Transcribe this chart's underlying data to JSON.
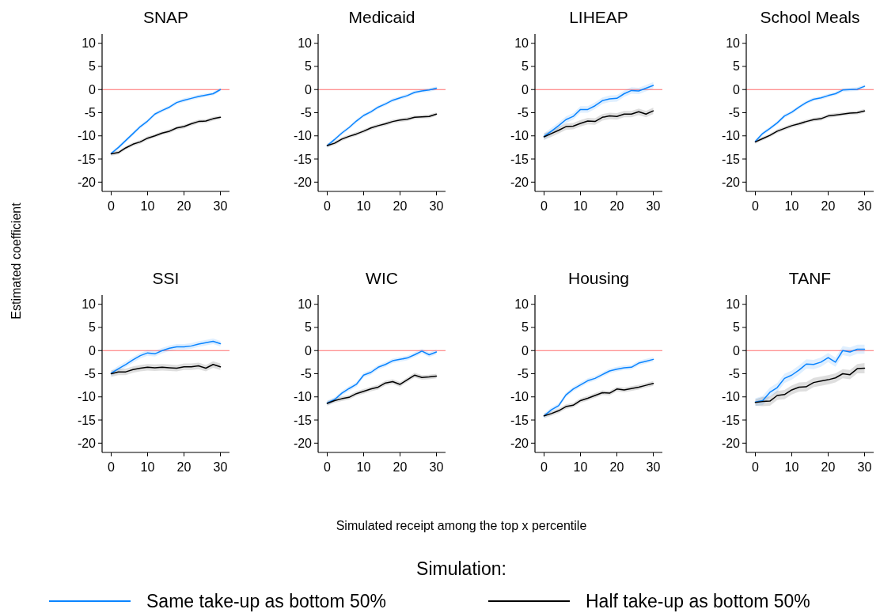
{
  "chart_data": [
    {
      "type": "line",
      "title": "SNAP",
      "ylabel": "Estimated coefficient",
      "legend_title": "Simulation:",
      "legend": "bottom",
      "x": [
        0,
        2,
        4,
        6,
        8,
        10,
        12,
        14,
        16,
        18,
        20,
        22,
        24,
        26,
        28,
        30
      ],
      "xlim": [
        -2.5,
        32.5
      ],
      "xticks": [
        0,
        10,
        20,
        30
      ],
      "ylim": [
        -22,
        12
      ],
      "yticks": [
        -20,
        -15,
        -10,
        -5,
        0,
        5,
        10
      ],
      "ref_lines": [
        {
          "axis": "y",
          "value": 0,
          "color": "#ff6b6b"
        }
      ],
      "series": [
        {
          "name": "Same take-up as bottom 50%",
          "color": "#0a84ff",
          "values": [
            -13.8,
            -12.5,
            -11,
            -9.5,
            -8,
            -6.8,
            -5.3,
            -4.5,
            -3.8,
            -2.8,
            -2.3,
            -1.9,
            -1.5,
            -1.2,
            -0.9,
            0
          ],
          "lower": [
            -14.2,
            -12.9,
            -11.4,
            -9.9,
            -8.4,
            -7.2,
            -5.7,
            -4.9,
            -4.2,
            -3.2,
            -2.7,
            -2.3,
            -1.9,
            -1.6,
            -1.3,
            -0.4
          ],
          "upper": [
            -13.4,
            -12.1,
            -10.6,
            -9.1,
            -7.6,
            -6.4,
            -4.9,
            -4.1,
            -3.4,
            -2.4,
            -1.9,
            -1.5,
            -1.1,
            -0.8,
            -0.5,
            0.4
          ]
        },
        {
          "name": "Half take-up as bottom 50%",
          "color": "#000000",
          "values": [
            -13.9,
            -13.6,
            -12.6,
            -11.8,
            -11.3,
            -10.5,
            -10,
            -9.4,
            -9,
            -8.3,
            -8,
            -7.4,
            -6.9,
            -6.8,
            -6.3,
            -6
          ],
          "lower": [
            -14.3,
            -14,
            -13,
            -12.2,
            -11.7,
            -10.9,
            -10.4,
            -9.8,
            -9.4,
            -8.7,
            -8.4,
            -7.8,
            -7.3,
            -7.2,
            -6.7,
            -6.4
          ],
          "upper": [
            -13.5,
            -13.2,
            -12.2,
            -11.4,
            -10.9,
            -10.1,
            -9.6,
            -9,
            -8.6,
            -7.9,
            -7.6,
            -7,
            -6.5,
            -6.4,
            -5.9,
            -5.6
          ]
        }
      ]
    },
    {
      "type": "line",
      "title": "Medicaid",
      "x": [
        0,
        2,
        4,
        6,
        8,
        10,
        12,
        14,
        16,
        18,
        20,
        22,
        24,
        26,
        28,
        30
      ],
      "xlim": [
        -2.5,
        32.5
      ],
      "xticks": [
        0,
        10,
        20,
        30
      ],
      "ylim": [
        -22,
        12
      ],
      "yticks": [
        -20,
        -15,
        -10,
        -5,
        0,
        5,
        10
      ],
      "ref_lines": [
        {
          "axis": "y",
          "value": 0,
          "color": "#ff6b6b"
        }
      ],
      "series": [
        {
          "color": "#0a84ff",
          "values": [
            -12.1,
            -10.8,
            -9.4,
            -8.2,
            -6.8,
            -5.6,
            -4.8,
            -3.8,
            -3.1,
            -2.3,
            -1.8,
            -1.3,
            -0.6,
            -0.3,
            -0.1,
            0.3
          ],
          "lower": [
            -12.5,
            -11.2,
            -9.8,
            -8.6,
            -7.2,
            -6,
            -5.2,
            -4.2,
            -3.5,
            -2.7,
            -2.2,
            -1.7,
            -1,
            -0.7,
            -0.5,
            -0.1
          ],
          "upper": [
            -11.7,
            -10.4,
            -9,
            -7.8,
            -6.4,
            -5.2,
            -4.4,
            -3.4,
            -2.7,
            -1.9,
            -1.4,
            -0.9,
            -0.2,
            0.1,
            0.3,
            0.7
          ]
        },
        {
          "color": "#000000",
          "values": [
            -12.1,
            -11.6,
            -10.7,
            -10.1,
            -9.6,
            -9,
            -8.3,
            -7.8,
            -7.4,
            -6.9,
            -6.6,
            -6.4,
            -6,
            -5.9,
            -5.8,
            -5.3
          ],
          "lower": [
            -12.5,
            -12,
            -11.1,
            -10.5,
            -10,
            -9.4,
            -8.7,
            -8.2,
            -7.8,
            -7.3,
            -7,
            -6.8,
            -6.4,
            -6.3,
            -6.2,
            -5.7
          ],
          "upper": [
            -11.7,
            -11.2,
            -10.3,
            -9.7,
            -9.2,
            -8.6,
            -7.9,
            -7.4,
            -7,
            -6.5,
            -6.2,
            -6,
            -5.6,
            -5.5,
            -5.4,
            -4.9
          ]
        }
      ]
    },
    {
      "type": "line",
      "title": "LIHEAP",
      "x": [
        0,
        2,
        4,
        6,
        8,
        10,
        12,
        14,
        16,
        18,
        20,
        22,
        24,
        26,
        28,
        30
      ],
      "xlim": [
        -2.5,
        32.5
      ],
      "xticks": [
        0,
        10,
        20,
        30
      ],
      "ylim": [
        -22,
        12
      ],
      "yticks": [
        -20,
        -15,
        -10,
        -5,
        0,
        5,
        10
      ],
      "ref_lines": [
        {
          "axis": "y",
          "value": 0,
          "color": "#ff6b6b"
        }
      ],
      "series": [
        {
          "color": "#0a84ff",
          "values": [
            -10.1,
            -9,
            -7.8,
            -6.5,
            -5.8,
            -4.3,
            -4.3,
            -3.5,
            -2.4,
            -2,
            -1.9,
            -0.9,
            -0.2,
            -0.3,
            0.3,
            0.9
          ],
          "lower": [
            -10.8,
            -9.7,
            -8.5,
            -7.2,
            -6.5,
            -5,
            -5,
            -4.2,
            -3.1,
            -2.7,
            -2.6,
            -1.6,
            -0.9,
            -1,
            -0.4,
            0.2
          ],
          "upper": [
            -9.4,
            -8.3,
            -7.1,
            -5.8,
            -5.1,
            -3.6,
            -3.6,
            -2.8,
            -1.7,
            -1.3,
            -1.2,
            -0.2,
            0.5,
            0.4,
            1,
            1.6
          ]
        },
        {
          "color": "#000000",
          "values": [
            -10.2,
            -9.5,
            -8.8,
            -8,
            -7.9,
            -7.3,
            -6.8,
            -6.9,
            -6,
            -5.7,
            -5.8,
            -5.3,
            -5.3,
            -4.8,
            -5.3,
            -4.6
          ],
          "lower": [
            -10.9,
            -10.2,
            -9.5,
            -8.7,
            -8.6,
            -8,
            -7.5,
            -7.6,
            -6.7,
            -6.4,
            -6.5,
            -6,
            -6,
            -5.5,
            -6,
            -5.3
          ],
          "upper": [
            -9.5,
            -8.8,
            -8.1,
            -7.3,
            -7.2,
            -6.6,
            -6.1,
            -6.2,
            -5.3,
            -5,
            -5.1,
            -4.6,
            -4.6,
            -4.1,
            -4.6,
            -3.9
          ]
        }
      ]
    },
    {
      "type": "line",
      "title": "School Meals",
      "x": [
        0,
        2,
        4,
        6,
        8,
        10,
        12,
        14,
        16,
        18,
        20,
        22,
        24,
        26,
        28,
        30
      ],
      "xlim": [
        -2.5,
        32.5
      ],
      "xticks": [
        0,
        10,
        20,
        30
      ],
      "ylim": [
        -22,
        12
      ],
      "yticks": [
        -20,
        -15,
        -10,
        -5,
        0,
        5,
        10
      ],
      "ref_lines": [
        {
          "axis": "y",
          "value": 0,
          "color": "#ff6b6b"
        }
      ],
      "series": [
        {
          "color": "#0a84ff",
          "values": [
            -11.2,
            -9.5,
            -8.4,
            -7.2,
            -5.7,
            -4.9,
            -3.8,
            -2.8,
            -2.1,
            -1.8,
            -1.3,
            -0.9,
            -0.1,
            0,
            0.1,
            0.7
          ],
          "lower": [
            -11.6,
            -9.9,
            -8.8,
            -7.6,
            -6.1,
            -5.3,
            -4.2,
            -3.2,
            -2.5,
            -2.2,
            -1.7,
            -1.3,
            -0.5,
            -0.4,
            -0.3,
            0.3
          ],
          "upper": [
            -10.8,
            -9.1,
            -8,
            -6.8,
            -5.3,
            -4.5,
            -3.4,
            -2.4,
            -1.7,
            -1.4,
            -0.9,
            -0.5,
            0.3,
            0.4,
            0.5,
            1.1
          ]
        },
        {
          "color": "#000000",
          "values": [
            -11.3,
            -10.6,
            -9.9,
            -9,
            -8.4,
            -7.8,
            -7.4,
            -6.9,
            -6.5,
            -6.3,
            -5.7,
            -5.5,
            -5.3,
            -5.1,
            -5,
            -4.6
          ],
          "lower": [
            -11.7,
            -11,
            -10.3,
            -9.4,
            -8.8,
            -8.2,
            -7.8,
            -7.3,
            -6.9,
            -6.7,
            -6.1,
            -5.9,
            -5.7,
            -5.5,
            -5.4,
            -5
          ],
          "upper": [
            -10.9,
            -10.2,
            -9.5,
            -8.6,
            -8,
            -7.4,
            -7,
            -6.5,
            -6.1,
            -5.9,
            -5.3,
            -5.1,
            -4.9,
            -4.7,
            -4.6,
            -4.2
          ]
        }
      ]
    },
    {
      "type": "line",
      "title": "SSI",
      "x": [
        0,
        2,
        4,
        6,
        8,
        10,
        12,
        14,
        16,
        18,
        20,
        22,
        24,
        26,
        28,
        30
      ],
      "xlim": [
        -2.5,
        32.5
      ],
      "xticks": [
        0,
        10,
        20,
        30
      ],
      "ylim": [
        -22,
        12
      ],
      "yticks": [
        -20,
        -15,
        -10,
        -5,
        0,
        5,
        10
      ],
      "ref_lines": [
        {
          "axis": "y",
          "value": 0,
          "color": "#ff6b6b"
        }
      ],
      "series": [
        {
          "color": "#0a84ff",
          "values": [
            -4.9,
            -3.9,
            -3,
            -2,
            -1.1,
            -0.5,
            -0.7,
            0,
            0.5,
            0.8,
            0.8,
            1,
            1.4,
            1.7,
            2,
            1.5
          ],
          "lower": [
            -5.5,
            -4.5,
            -3.6,
            -2.6,
            -1.7,
            -1.1,
            -1.3,
            -0.6,
            -0.1,
            0.2,
            0.2,
            0.4,
            0.8,
            1.1,
            1.4,
            0.9
          ],
          "upper": [
            -4.3,
            -3.3,
            -2.4,
            -1.4,
            -0.5,
            0.1,
            -0.1,
            0.6,
            1.1,
            1.4,
            1.4,
            1.6,
            2,
            2.3,
            2.6,
            2.1
          ]
        },
        {
          "color": "#000000",
          "values": [
            -5,
            -4.6,
            -4.6,
            -4.1,
            -3.8,
            -3.6,
            -3.7,
            -3.6,
            -3.7,
            -3.8,
            -3.5,
            -3.5,
            -3.3,
            -3.8,
            -3,
            -3.5
          ],
          "lower": [
            -5.7,
            -5.3,
            -5.3,
            -4.8,
            -4.5,
            -4.3,
            -4.4,
            -4.3,
            -4.4,
            -4.5,
            -4.2,
            -4.2,
            -4,
            -4.5,
            -3.7,
            -4.2
          ],
          "upper": [
            -4.3,
            -3.9,
            -3.9,
            -3.4,
            -3.1,
            -2.9,
            -3,
            -2.9,
            -3,
            -3.1,
            -2.8,
            -2.8,
            -2.6,
            -3.1,
            -2.3,
            -2.8
          ]
        }
      ]
    },
    {
      "type": "line",
      "title": "WIC",
      "xlabel": "Simulated receipt among the top x percentile",
      "x": [
        0,
        2,
        4,
        6,
        8,
        10,
        12,
        14,
        16,
        18,
        20,
        22,
        24,
        26,
        28,
        30
      ],
      "xlim": [
        -2.5,
        32.5
      ],
      "xticks": [
        0,
        10,
        20,
        30
      ],
      "ylim": [
        -22,
        12
      ],
      "yticks": [
        -20,
        -15,
        -10,
        -5,
        0,
        5,
        10
      ],
      "ref_lines": [
        {
          "axis": "y",
          "value": 0,
          "color": "#ff6b6b"
        }
      ],
      "series": [
        {
          "color": "#0a84ff",
          "values": [
            -11.3,
            -10.6,
            -9.2,
            -8.2,
            -7.3,
            -5.3,
            -4.7,
            -3.6,
            -3,
            -2.2,
            -1.9,
            -1.6,
            -0.9,
            -0.1,
            -0.9,
            -0.3
          ],
          "lower": [
            -11.8,
            -11.1,
            -9.7,
            -8.7,
            -7.8,
            -5.8,
            -5.2,
            -4.1,
            -3.5,
            -2.7,
            -2.4,
            -2.1,
            -1.4,
            -0.6,
            -1.4,
            -0.8
          ],
          "upper": [
            -10.8,
            -10.1,
            -8.7,
            -7.7,
            -6.8,
            -4.8,
            -4.2,
            -3.1,
            -2.5,
            -1.7,
            -1.4,
            -1.1,
            -0.4,
            0.4,
            -0.4,
            0.2
          ]
        },
        {
          "color": "#000000",
          "values": [
            -11.4,
            -10.8,
            -10.4,
            -10.1,
            -9.3,
            -8.8,
            -8.3,
            -7.9,
            -7,
            -6.7,
            -7.3,
            -6.3,
            -5.3,
            -5.8,
            -5.7,
            -5.5
          ],
          "lower": [
            -11.9,
            -11.3,
            -10.9,
            -10.6,
            -9.8,
            -9.3,
            -8.8,
            -8.4,
            -7.5,
            -7.2,
            -7.8,
            -6.8,
            -5.8,
            -6.3,
            -6.2,
            -6
          ],
          "upper": [
            -10.9,
            -10.3,
            -9.9,
            -9.6,
            -8.8,
            -8.3,
            -7.8,
            -7.4,
            -6.5,
            -6.2,
            -6.8,
            -5.8,
            -4.8,
            -5.3,
            -5.2,
            -5
          ]
        }
      ]
    },
    {
      "type": "line",
      "title": "Housing",
      "x": [
        0,
        2,
        4,
        6,
        8,
        10,
        12,
        14,
        16,
        18,
        20,
        22,
        24,
        26,
        28,
        30
      ],
      "xlim": [
        -2.5,
        32.5
      ],
      "xticks": [
        0,
        10,
        20,
        30
      ],
      "ylim": [
        -22,
        12
      ],
      "yticks": [
        -20,
        -15,
        -10,
        -5,
        0,
        5,
        10
      ],
      "ref_lines": [
        {
          "axis": "y",
          "value": 0,
          "color": "#ff6b6b"
        }
      ],
      "series": [
        {
          "color": "#0a84ff",
          "values": [
            -14.1,
            -12.8,
            -11.9,
            -9.6,
            -8.3,
            -7.4,
            -6.5,
            -6,
            -5.2,
            -4.4,
            -4,
            -3.7,
            -3.6,
            -2.7,
            -2.3,
            -1.9
          ],
          "lower": [
            -14.6,
            -13.3,
            -12.4,
            -10.1,
            -8.8,
            -7.9,
            -7,
            -6.5,
            -5.7,
            -4.9,
            -4.5,
            -4.2,
            -4.1,
            -3.2,
            -2.8,
            -2.4
          ],
          "upper": [
            -13.6,
            -12.3,
            -11.4,
            -9.1,
            -7.8,
            -6.9,
            -6,
            -5.5,
            -4.7,
            -3.9,
            -3.5,
            -3.2,
            -3.1,
            -2.2,
            -1.8,
            -1.4
          ]
        },
        {
          "color": "#000000",
          "values": [
            -14.1,
            -13.6,
            -13,
            -12.1,
            -11.8,
            -10.8,
            -10.3,
            -9.7,
            -9.1,
            -9.2,
            -8.3,
            -8.5,
            -8.2,
            -7.9,
            -7.5,
            -7.1
          ],
          "lower": [
            -14.6,
            -14.1,
            -13.5,
            -12.6,
            -12.3,
            -11.3,
            -10.8,
            -10.2,
            -9.6,
            -9.7,
            -8.8,
            -9,
            -8.7,
            -8.4,
            -8,
            -7.6
          ],
          "upper": [
            -13.6,
            -13.1,
            -12.5,
            -11.6,
            -11.3,
            -10.3,
            -9.8,
            -9.2,
            -8.6,
            -8.7,
            -7.8,
            -8,
            -7.7,
            -7.4,
            -7,
            -6.6
          ]
        }
      ]
    },
    {
      "type": "line",
      "title": "TANF",
      "x": [
        0,
        2,
        4,
        6,
        8,
        10,
        12,
        14,
        16,
        18,
        20,
        22,
        24,
        26,
        28,
        30
      ],
      "xlim": [
        -2.5,
        32.5
      ],
      "xticks": [
        0,
        10,
        20,
        30
      ],
      "ylim": [
        -22,
        12
      ],
      "yticks": [
        -20,
        -15,
        -10,
        -5,
        0,
        5,
        10
      ],
      "ref_lines": [
        {
          "axis": "y",
          "value": 0,
          "color": "#ff6b6b"
        }
      ],
      "series": [
        {
          "color": "#0a84ff",
          "values": [
            -11.1,
            -10.8,
            -9,
            -8,
            -6,
            -5.3,
            -4.2,
            -2.9,
            -3,
            -2.5,
            -1.5,
            -2.5,
            0,
            -0.3,
            0.3,
            0.3
          ],
          "lower": [
            -11.9,
            -11.8,
            -10,
            -9,
            -7,
            -6.3,
            -5.2,
            -3.9,
            -4,
            -3.5,
            -2.5,
            -3.5,
            -1,
            -1.3,
            -0.7,
            -0.7
          ],
          "upper": [
            -10.3,
            -9.8,
            -8,
            -7,
            -5,
            -4.3,
            -3.2,
            -1.9,
            -2,
            -1.5,
            -0.5,
            -1.5,
            1,
            0.7,
            1.3,
            1.3
          ]
        },
        {
          "color": "#000000",
          "values": [
            -11.2,
            -11,
            -10.9,
            -9.7,
            -9.5,
            -8.5,
            -7.9,
            -7.8,
            -6.9,
            -6.6,
            -6.3,
            -5.9,
            -5,
            -5.2,
            -3.9,
            -3.8
          ],
          "lower": [
            -11.9,
            -12,
            -11.9,
            -10.7,
            -10.5,
            -9.5,
            -8.9,
            -8.8,
            -7.9,
            -7.6,
            -7.3,
            -6.9,
            -6,
            -6.2,
            -4.9,
            -4.9
          ],
          "upper": [
            -10.5,
            -10,
            -9.9,
            -8.7,
            -8.5,
            -7.5,
            -6.9,
            -6.8,
            -5.9,
            -5.6,
            -5.3,
            -4.9,
            -4,
            -4.2,
            -2.9,
            -2.7
          ]
        }
      ]
    }
  ]
}
